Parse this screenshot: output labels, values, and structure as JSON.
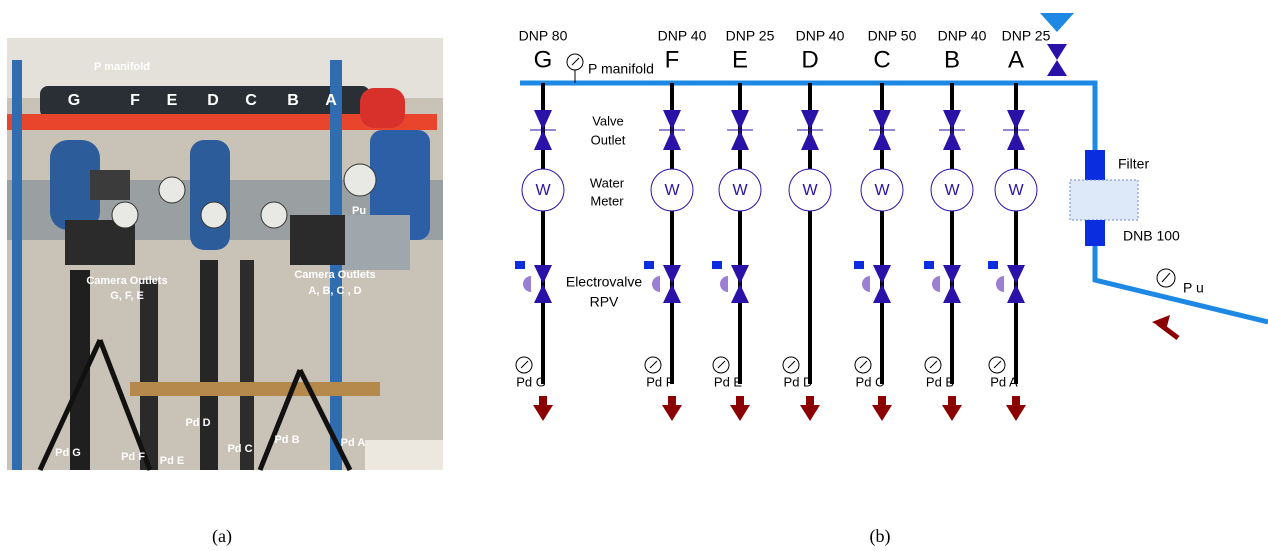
{
  "panel_a": {
    "caption": "(a)",
    "p_manifold": "P manifold",
    "pipe_letters": [
      "G",
      "F",
      "E",
      "D",
      "C",
      "B",
      "A"
    ],
    "pu": "Pu",
    "camera_left": [
      "Camera Outlets",
      "G, F, E"
    ],
    "camera_right": [
      "Camera Outlets",
      "A, B, C , D"
    ],
    "pd_labels": [
      "Pd G",
      "Pd F",
      "Pd E",
      "Pd D",
      "Pd C",
      "Pd B",
      "Pd A"
    ]
  },
  "panel_b": {
    "caption": "(b)",
    "columns": [
      {
        "dnp": "DNP 80",
        "letter": "G",
        "pd": "Pd G"
      },
      {
        "dnp": "DNP 40",
        "letter": "F",
        "pd": "Pd F"
      },
      {
        "dnp": "DNP 25",
        "letter": "E",
        "pd": "Pd E"
      },
      {
        "dnp": "DNP 40",
        "letter": "D",
        "pd": "Pd D"
      },
      {
        "dnp": "DNP 50",
        "letter": "C",
        "pd": "Pd C"
      },
      {
        "dnp": "DNP 40",
        "letter": "B",
        "pd": "Pd B"
      },
      {
        "dnp": "DNP 25",
        "letter": "A",
        "pd": "Pd A"
      }
    ],
    "meter_symbol": "W",
    "p_manifold": "P manifold",
    "valve_outlet": [
      "Valve",
      "Outlet"
    ],
    "water_meter": [
      "Water",
      "Meter"
    ],
    "electrovalve": [
      "Electrovalve",
      "RPV"
    ],
    "filter": "Filter",
    "dnb": "DNB 100",
    "pu": "P u"
  }
}
